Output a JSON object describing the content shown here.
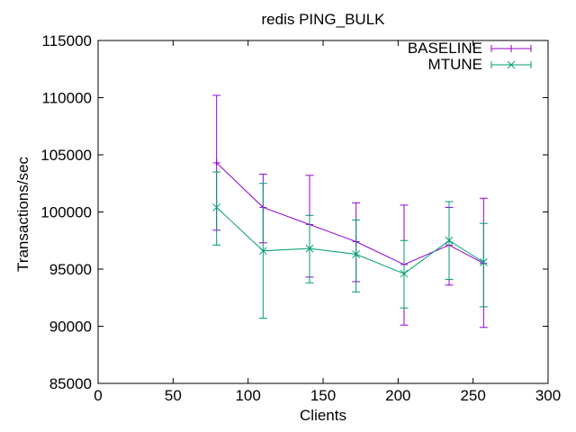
{
  "window": {
    "background": "#ffffff",
    "frame_color": "#000000",
    "text_color": "#000000"
  },
  "chart_data": {
    "type": "line",
    "title": "redis PING_BULK",
    "xlabel": "Clients",
    "ylabel": "Transactions/sec",
    "xlim": [
      0,
      300
    ],
    "ylim": [
      85000,
      115000
    ],
    "xticks": [
      0,
      50,
      100,
      150,
      200,
      250,
      300
    ],
    "yticks": [
      85000,
      90000,
      95000,
      100000,
      105000,
      110000,
      115000
    ],
    "grid": false,
    "legend": {
      "position": "top-right-inside",
      "entries": [
        "BASELINE",
        "MTUNE"
      ]
    },
    "x": [
      79,
      110,
      141,
      172,
      204,
      234,
      257
    ],
    "series": [
      {
        "name": "BASELINE",
        "color": "#9400d3",
        "marker": "plus",
        "values": [
          104300,
          100400,
          98900,
          97400,
          95400,
          97100,
          95500
        ],
        "err_high": [
          110200,
          103300,
          103200,
          100800,
          100600,
          100400,
          101200
        ],
        "err_low": [
          98400,
          97300,
          94300,
          93900,
          90100,
          93600,
          89900
        ]
      },
      {
        "name": "MTUNE",
        "color": "#009e73",
        "marker": "cross",
        "values": [
          100400,
          96600,
          96800,
          96300,
          94600,
          97500,
          95600
        ],
        "err_high": [
          103500,
          102500,
          99700,
          99300,
          97500,
          100900,
          99000
        ],
        "err_low": [
          97100,
          90700,
          93800,
          93000,
          91600,
          94100,
          91700
        ]
      }
    ]
  }
}
